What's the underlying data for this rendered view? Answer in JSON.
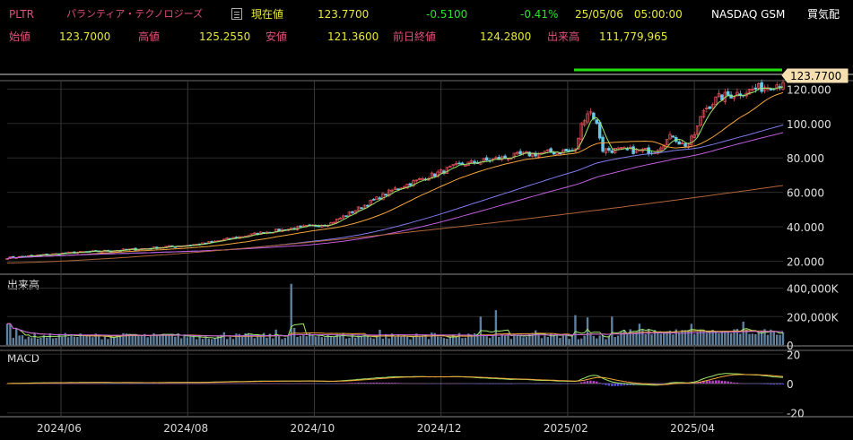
{
  "header": {
    "ticker": "PLTR",
    "company": "パランティア・テクノロジーズ",
    "current_label": "現在値",
    "current_value": "123.7700",
    "change": "-0.5100",
    "change_pct": "-0.41%",
    "datetime": "25/05/06　05:00:00",
    "market": "NASDAQ GSM",
    "trade_button": "買気配",
    "open_label": "始値",
    "open_value": "123.7000",
    "high_label": "高値",
    "high_value": "125.2550",
    "low_label": "安値",
    "low_value": "121.3600",
    "prev_close_label": "前日終値",
    "prev_close_value": "124.2800",
    "volume_label": "出来高",
    "volume_value": "111,779,965"
  },
  "colors": {
    "bg": "#000000",
    "up": "#e8505b",
    "down": "#66c8e6",
    "ma_short": "#9be86a",
    "ma_mid": "#f4a43a",
    "ma_long": "#7f7cf0",
    "ma_xlong": "#c15ee0",
    "ma_200": "#b0643a",
    "highlight": "#22e010",
    "pink_text": "#e0507a",
    "yellow_text": "#e8e83a",
    "green_text": "#2ee02e"
  },
  "chart_data": [
    {
      "type": "candlestick",
      "title": "PLTR",
      "x_tick_labels": [
        "2024/06",
        "2024/08",
        "2024/10",
        "2024/12",
        "2025/02",
        "2025/04"
      ],
      "y_tick_labels": [
        "120.000",
        "100.000",
        "80.000",
        "60.000",
        "40.000",
        "20.000"
      ],
      "ylim": [
        13,
        128
      ],
      "last_price_label": "123.7700",
      "grid": true,
      "monthly_close": [
        {
          "x": "2024-05",
          "close": 22
        },
        {
          "x": "2024-06",
          "close": 25
        },
        {
          "x": "2024-07",
          "close": 27
        },
        {
          "x": "2024-08",
          "close": 30
        },
        {
          "x": "2024-09",
          "close": 37
        },
        {
          "x": "2024-10",
          "close": 42
        },
        {
          "x": "2024-11",
          "close": 62
        },
        {
          "x": "2024-12",
          "close": 76
        },
        {
          "x": "2025-01",
          "close": 82
        },
        {
          "x": "2025-02",
          "close": 85
        },
        {
          "x": "2025-03",
          "close": 84
        },
        {
          "x": "2025-04",
          "close": 115
        },
        {
          "x": "2025-05",
          "close": 123.77
        }
      ],
      "moving_averages": [
        "short",
        "medium",
        "long",
        "extra long",
        "200 day"
      ]
    },
    {
      "type": "bar",
      "title": "出来高",
      "y_tick_labels": [
        "400,000K",
        "200,000K",
        "0"
      ],
      "ylim": [
        0,
        460000
      ]
    },
    {
      "type": "bar",
      "title": "MACD",
      "y_tick_labels": [
        "20",
        "0",
        "-20"
      ],
      "ylim": [
        -22,
        22
      ]
    }
  ]
}
